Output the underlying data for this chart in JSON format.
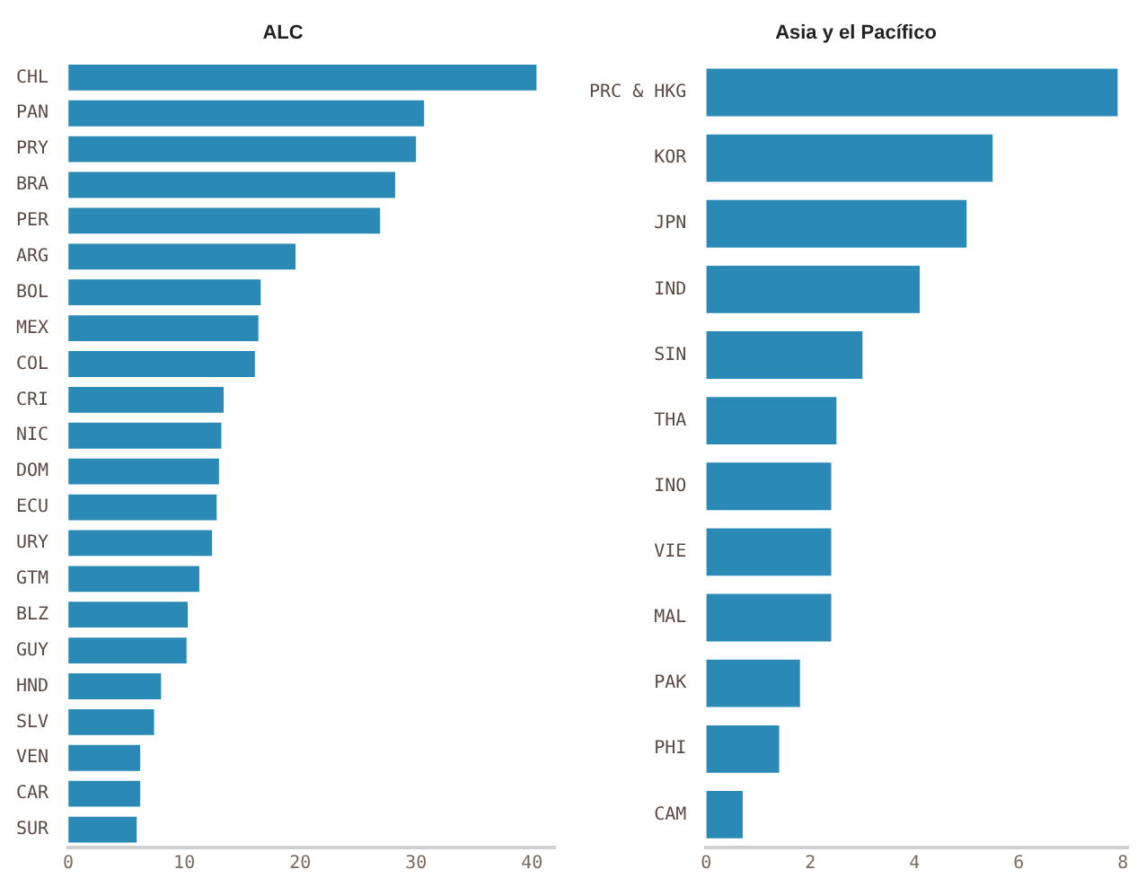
{
  "chart_data": [
    {
      "type": "bar",
      "orientation": "horizontal",
      "title": "ALC",
      "categories": [
        "CHL",
        "PAN",
        "PRY",
        "BRA",
        "PER",
        "ARG",
        "BOL",
        "MEX",
        "COL",
        "CRI",
        "NIC",
        "DOM",
        "ECU",
        "URY",
        "GTM",
        "BLZ",
        "GUY",
        "HND",
        "SLV",
        "VEN",
        "CAR",
        "SUR"
      ],
      "values": [
        40.4,
        30.7,
        30.0,
        28.2,
        26.9,
        19.6,
        16.6,
        16.4,
        16.1,
        13.4,
        13.2,
        13.0,
        12.8,
        12.4,
        11.3,
        10.3,
        10.2,
        8.0,
        7.4,
        6.2,
        6.2,
        5.9
      ],
      "color": "#2a8ab5",
      "xlim": [
        0,
        42
      ],
      "xticks": [
        0,
        10,
        20,
        30,
        40
      ],
      "grid": false
    },
    {
      "type": "bar",
      "orientation": "horizontal",
      "title": "Asia y el Pacífico",
      "categories": [
        "PRC & HKG",
        "KOR",
        "JPN",
        "IND",
        "SIN",
        "THA",
        "INO",
        "VIE",
        "MAL",
        "PAK",
        "PHI",
        "CAM"
      ],
      "values": [
        7.9,
        5.5,
        5.0,
        4.1,
        3.0,
        2.5,
        2.4,
        2.4,
        2.4,
        1.8,
        1.4,
        0.7
      ],
      "color": "#2a8ab5",
      "xlim": [
        0,
        8.1
      ],
      "xticks": [
        0,
        2,
        4,
        6,
        8
      ],
      "grid": false
    }
  ]
}
